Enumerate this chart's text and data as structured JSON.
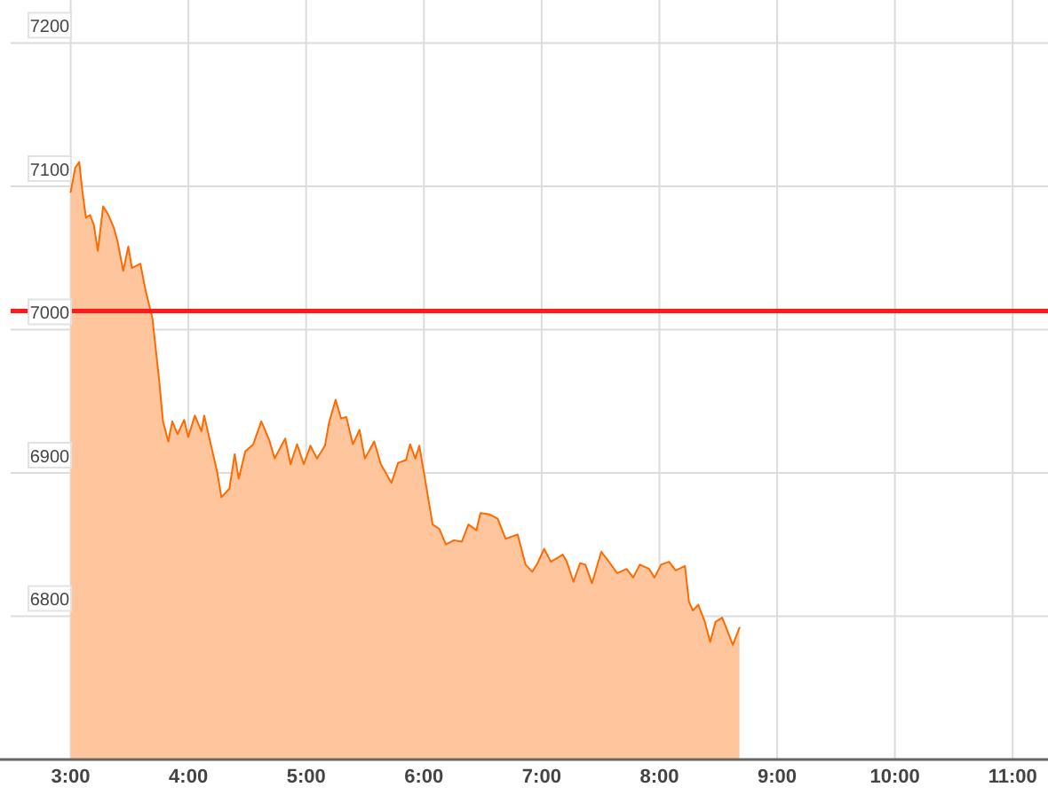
{
  "chart_data": {
    "type": "area",
    "xlim": [
      2.4,
      11.3
    ],
    "ylim": [
      6700,
      7230
    ],
    "xticks": [
      {
        "value": 3,
        "label": "3:00"
      },
      {
        "value": 4,
        "label": "4:00"
      },
      {
        "value": 5,
        "label": "5:00"
      },
      {
        "value": 6,
        "label": "6:00"
      },
      {
        "value": 7,
        "label": "7:00"
      },
      {
        "value": 8,
        "label": "8:00"
      },
      {
        "value": 9,
        "label": "9:00"
      },
      {
        "value": 10,
        "label": "10:00"
      },
      {
        "value": 11,
        "label": "11:00"
      }
    ],
    "yticks": [
      6800,
      6900,
      7000,
      7100,
      7200
    ],
    "grid": true,
    "ref_lines": [
      {
        "axis": "y",
        "value": 7013,
        "color": "#ff1a1a"
      }
    ],
    "series": [
      {
        "color": "#ff6a00",
        "x": [
          3.0,
          3.039,
          3.073,
          3.096,
          3.13,
          3.164,
          3.197,
          3.231,
          3.276,
          3.321,
          3.367,
          3.4,
          3.446,
          3.49,
          3.52,
          3.592,
          3.637,
          3.694,
          3.75,
          3.784,
          3.829,
          3.863,
          3.908,
          3.964,
          3.998,
          4.055,
          4.111,
          4.134,
          4.19,
          4.246,
          4.28,
          4.348,
          4.393,
          4.427,
          4.483,
          4.551,
          4.619,
          4.686,
          4.732,
          4.822,
          4.867,
          4.923,
          4.98,
          5.036,
          5.092,
          5.16,
          5.194,
          5.25,
          5.296,
          5.341,
          5.397,
          5.453,
          5.499,
          5.578,
          5.634,
          5.724,
          5.781,
          5.848,
          5.882,
          5.927,
          5.961,
          6.017,
          6.074,
          6.13,
          6.187,
          6.254,
          6.322,
          6.378,
          6.446,
          6.48,
          6.559,
          6.627,
          6.694,
          6.796,
          6.863,
          6.92,
          6.965,
          7.021,
          7.078,
          7.179,
          7.214,
          7.27,
          7.326,
          7.371,
          7.428,
          7.506,
          7.563,
          7.642,
          7.721,
          7.777,
          7.834,
          7.913,
          7.958,
          8.014,
          8.082,
          8.138,
          8.217,
          8.251,
          8.285,
          8.33,
          8.386,
          8.431,
          8.476,
          8.533,
          8.567,
          8.623,
          8.68
        ],
        "values": [
          7096,
          7113,
          7117,
          7099,
          7078,
          7080,
          7073,
          7055,
          7086,
          7080,
          7071,
          7061,
          7041,
          7058,
          7043,
          7046,
          7027,
          7008,
          6966,
          6936,
          6922,
          6936,
          6927,
          6937,
          6925,
          6940,
          6929,
          6940,
          6920,
          6900,
          6883,
          6889,
          6913,
          6896,
          6915,
          6920,
          6936,
          6923,
          6910,
          6924,
          6906,
          6920,
          6906,
          6919,
          6910,
          6919,
          6935,
          6951,
          6938,
          6939,
          6920,
          6930,
          6910,
          6922,
          6906,
          6893,
          6907,
          6909,
          6920,
          6910,
          6919,
          6892,
          6864,
          6861,
          6850,
          6853,
          6852,
          6864,
          6860,
          6872,
          6871,
          6868,
          6854,
          6857,
          6836,
          6831,
          6837,
          6847,
          6838,
          6843,
          6838,
          6824,
          6837,
          6836,
          6823,
          6845,
          6839,
          6830,
          6833,
          6827,
          6836,
          6833,
          6827,
          6836,
          6838,
          6832,
          6835,
          6810,
          6804,
          6808,
          6796,
          6782,
          6796,
          6799,
          6792,
          6780,
          6792
        ]
      }
    ]
  }
}
